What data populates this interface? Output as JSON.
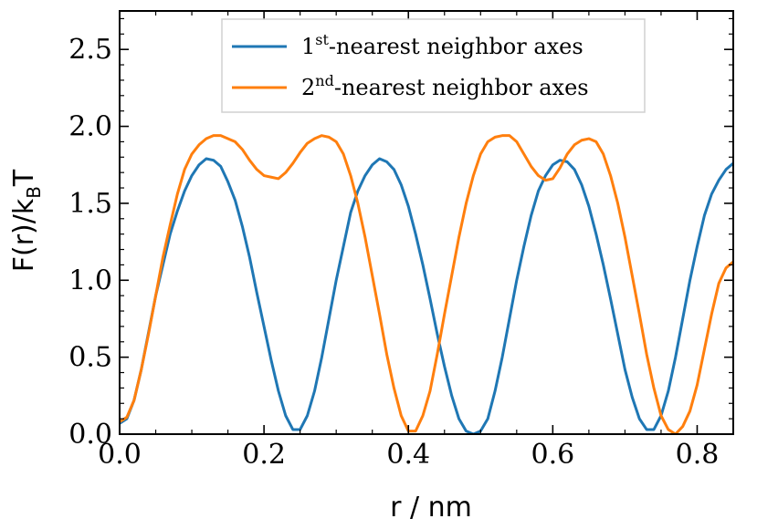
{
  "chart_data": {
    "type": "line",
    "xlabel": "r / nm",
    "ylabel": {
      "base": "F(r)/k",
      "sub": "B",
      "tail": "T"
    },
    "xlim": [
      0.0,
      0.85
    ],
    "ylim": [
      0.0,
      2.75
    ],
    "xticks": [
      "0.0",
      "0.2",
      "0.4",
      "0.6",
      "0.8"
    ],
    "xtick_values": [
      0.0,
      0.2,
      0.4,
      0.6,
      0.8
    ],
    "yticks": [
      "0.0",
      "0.5",
      "1.0",
      "1.5",
      "2.0",
      "2.5"
    ],
    "ytick_values": [
      0.0,
      0.5,
      1.0,
      1.5,
      2.0,
      2.5
    ],
    "grid": false,
    "legend_position": "top-center",
    "series": [
      {
        "legend": {
          "pre": "1",
          "sup": "st",
          "post": "-nearest neighbor axes"
        },
        "color": "#1f77b4",
        "x": [
          0.0,
          0.01,
          0.02,
          0.03,
          0.04,
          0.05,
          0.06,
          0.07,
          0.08,
          0.09,
          0.1,
          0.11,
          0.12,
          0.13,
          0.14,
          0.15,
          0.16,
          0.17,
          0.18,
          0.19,
          0.2,
          0.21,
          0.22,
          0.23,
          0.24,
          0.25,
          0.26,
          0.27,
          0.28,
          0.29,
          0.3,
          0.31,
          0.32,
          0.33,
          0.34,
          0.35,
          0.36,
          0.37,
          0.38,
          0.39,
          0.4,
          0.41,
          0.42,
          0.43,
          0.44,
          0.45,
          0.46,
          0.47,
          0.48,
          0.49,
          0.5,
          0.51,
          0.52,
          0.53,
          0.54,
          0.55,
          0.56,
          0.57,
          0.58,
          0.59,
          0.6,
          0.61,
          0.62,
          0.63,
          0.64,
          0.65,
          0.66,
          0.67,
          0.68,
          0.69,
          0.7,
          0.71,
          0.72,
          0.73,
          0.74,
          0.75,
          0.76,
          0.77,
          0.78,
          0.79,
          0.8,
          0.81,
          0.82,
          0.83,
          0.84,
          0.85
        ],
        "y": [
          0.07,
          0.1,
          0.22,
          0.42,
          0.66,
          0.9,
          1.1,
          1.3,
          1.45,
          1.58,
          1.68,
          1.75,
          1.79,
          1.78,
          1.74,
          1.64,
          1.52,
          1.35,
          1.15,
          0.92,
          0.7,
          0.48,
          0.28,
          0.12,
          0.03,
          0.03,
          0.12,
          0.28,
          0.5,
          0.75,
          1.0,
          1.22,
          1.44,
          1.58,
          1.68,
          1.75,
          1.79,
          1.77,
          1.72,
          1.62,
          1.48,
          1.3,
          1.1,
          0.88,
          0.65,
          0.44,
          0.25,
          0.1,
          0.02,
          0.0,
          0.02,
          0.1,
          0.28,
          0.5,
          0.75,
          1.0,
          1.22,
          1.42,
          1.58,
          1.68,
          1.75,
          1.78,
          1.77,
          1.72,
          1.62,
          1.48,
          1.3,
          1.1,
          0.88,
          0.65,
          0.42,
          0.24,
          0.1,
          0.03,
          0.03,
          0.12,
          0.28,
          0.5,
          0.75,
          1.0,
          1.22,
          1.42,
          1.56,
          1.65,
          1.72,
          1.76
        ]
      },
      {
        "legend": {
          "pre": "2",
          "sup": "nd",
          "post": "-nearest neighbor axes"
        },
        "color": "#ff7f0e",
        "x": [
          0.0,
          0.01,
          0.02,
          0.03,
          0.04,
          0.05,
          0.06,
          0.07,
          0.08,
          0.09,
          0.1,
          0.11,
          0.12,
          0.13,
          0.14,
          0.15,
          0.16,
          0.17,
          0.18,
          0.19,
          0.2,
          0.21,
          0.22,
          0.23,
          0.24,
          0.25,
          0.26,
          0.27,
          0.28,
          0.29,
          0.3,
          0.31,
          0.32,
          0.33,
          0.34,
          0.35,
          0.36,
          0.37,
          0.38,
          0.39,
          0.4,
          0.41,
          0.42,
          0.43,
          0.44,
          0.45,
          0.46,
          0.47,
          0.48,
          0.49,
          0.5,
          0.51,
          0.52,
          0.53,
          0.54,
          0.55,
          0.56,
          0.57,
          0.58,
          0.59,
          0.6,
          0.61,
          0.62,
          0.63,
          0.64,
          0.65,
          0.66,
          0.67,
          0.68,
          0.69,
          0.7,
          0.71,
          0.72,
          0.73,
          0.74,
          0.75,
          0.76,
          0.77,
          0.78,
          0.79,
          0.8,
          0.81,
          0.82,
          0.83,
          0.84,
          0.85
        ],
        "y": [
          0.08,
          0.11,
          0.22,
          0.42,
          0.65,
          0.9,
          1.15,
          1.36,
          1.56,
          1.72,
          1.82,
          1.88,
          1.92,
          1.94,
          1.94,
          1.92,
          1.9,
          1.85,
          1.78,
          1.72,
          1.68,
          1.67,
          1.66,
          1.7,
          1.76,
          1.83,
          1.89,
          1.92,
          1.94,
          1.93,
          1.9,
          1.82,
          1.68,
          1.5,
          1.28,
          1.03,
          0.78,
          0.52,
          0.3,
          0.12,
          0.02,
          0.02,
          0.12,
          0.28,
          0.52,
          0.78,
          1.03,
          1.28,
          1.5,
          1.68,
          1.82,
          1.9,
          1.93,
          1.94,
          1.94,
          1.9,
          1.82,
          1.74,
          1.68,
          1.65,
          1.66,
          1.73,
          1.82,
          1.88,
          1.91,
          1.92,
          1.9,
          1.82,
          1.68,
          1.5,
          1.28,
          1.03,
          0.78,
          0.52,
          0.3,
          0.12,
          0.03,
          0.0,
          0.05,
          0.15,
          0.32,
          0.55,
          0.78,
          0.98,
          1.08,
          1.12
        ]
      }
    ]
  }
}
